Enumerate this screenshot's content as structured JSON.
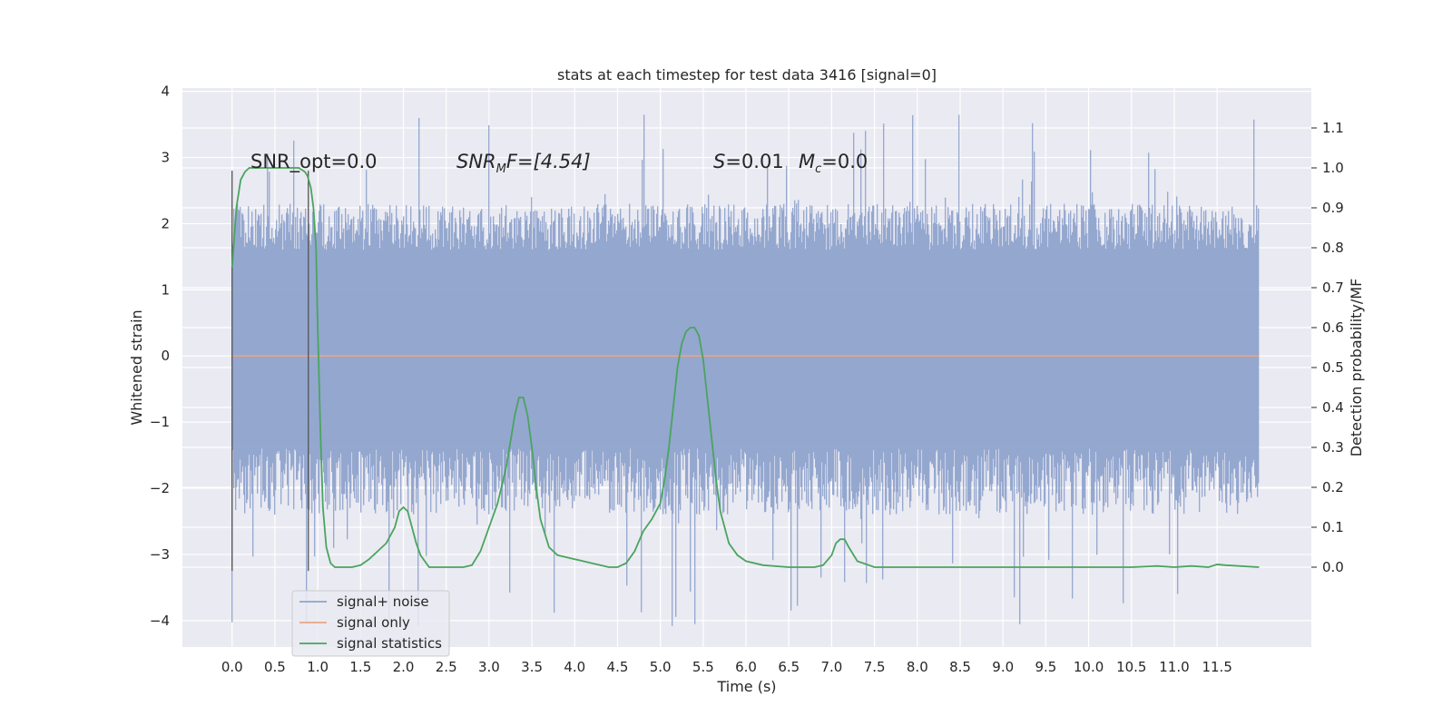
{
  "chart_data": {
    "type": "line",
    "title": "stats at each timestep for test data 3416 [signal=0]",
    "xlabel": "Time (s)",
    "ylabel": "Whitened strain",
    "ylabel_right": "Detection probability/MF",
    "xlim": [
      -0.58,
      12.6
    ],
    "ylim": [
      -4.4,
      4.05
    ],
    "ylim_right": [
      -0.2,
      1.2
    ],
    "x_ticks": [
      "0.0",
      "0.5",
      "1.0",
      "1.5",
      "2.0",
      "2.5",
      "3.0",
      "3.5",
      "4.0",
      "4.5",
      "5.0",
      "5.5",
      "6.0",
      "6.5",
      "7.0",
      "7.5",
      "8.0",
      "8.5",
      "9.0",
      "9.5",
      "10.0",
      "10.5",
      "11.0",
      "11.5"
    ],
    "y_ticks": [
      "4",
      "3",
      "2",
      "1",
      "0",
      "−1",
      "−2",
      "−3",
      "−4"
    ],
    "y_ticks_right": [
      "1.1",
      "1.0",
      "0.9",
      "0.8",
      "0.7",
      "0.6",
      "0.5",
      "0.4",
      "0.3",
      "0.2",
      "0.1",
      "0.0"
    ],
    "grid": true,
    "legend_position": "lower-left",
    "annotations": {
      "snr_opt": "SNR_opt=0.0",
      "snr_mf_base": "SNR",
      "snr_mf_sub": "M",
      "snr_mf_rest": "F=[4.54]",
      "s_label": "S",
      "s_value": "=0.01",
      "mc_label": "M",
      "mc_sub": "c",
      "mc_value": "=0.0"
    },
    "vertical_markers": [
      0.0,
      0.89
    ],
    "noise_summary": {
      "x_start": 0.0,
      "x_end": 11.99,
      "band_hi": 1.6,
      "band_lo": -1.4,
      "peak_hi_typical": 2.3,
      "peak_lo_typical": -2.4,
      "peak_max": 3.65,
      "peak_min": -4.1
    },
    "series": [
      {
        "name": "signal+ noise",
        "color": "#8fa3cc",
        "axis": "left",
        "note": "dense noise trace spanning 0 to 12 s"
      },
      {
        "name": "signal only",
        "color": "#e7a585",
        "axis": "left",
        "x": [
          0.0,
          11.99
        ],
        "y": [
          0.0,
          0.0
        ]
      },
      {
        "name": "signal statistics",
        "color": "#4aa45e",
        "axis": "right",
        "x": [
          0.0,
          0.05,
          0.1,
          0.15,
          0.2,
          0.3,
          0.5,
          0.7,
          0.78,
          0.85,
          0.88,
          0.92,
          0.95,
          0.98,
          1.0,
          1.03,
          1.06,
          1.1,
          1.15,
          1.2,
          1.3,
          1.4,
          1.5,
          1.6,
          1.7,
          1.8,
          1.9,
          1.95,
          2.0,
          2.05,
          2.1,
          2.15,
          2.2,
          2.3,
          2.4,
          2.5,
          2.6,
          2.7,
          2.8,
          2.9,
          3.0,
          3.1,
          3.2,
          3.3,
          3.35,
          3.4,
          3.45,
          3.5,
          3.55,
          3.6,
          3.7,
          3.8,
          3.9,
          4.0,
          4.2,
          4.4,
          4.5,
          4.6,
          4.7,
          4.8,
          4.9,
          5.0,
          5.05,
          5.1,
          5.15,
          5.2,
          5.25,
          5.3,
          5.35,
          5.4,
          5.45,
          5.5,
          5.55,
          5.6,
          5.65,
          5.7,
          5.8,
          5.9,
          6.0,
          6.2,
          6.5,
          6.8,
          6.9,
          7.0,
          7.05,
          7.1,
          7.15,
          7.2,
          7.3,
          7.5,
          8.0,
          8.5,
          9.0,
          9.5,
          10.0,
          10.2,
          10.5,
          10.8,
          11.0,
          11.2,
          11.4,
          11.5,
          11.6,
          11.99
        ],
        "y": [
          0.75,
          0.9,
          0.97,
          0.99,
          1.0,
          1.0,
          1.0,
          1.0,
          1.0,
          0.99,
          0.98,
          0.95,
          0.9,
          0.8,
          0.6,
          0.35,
          0.15,
          0.05,
          0.01,
          0.0,
          0.0,
          0.0,
          0.005,
          0.02,
          0.04,
          0.06,
          0.1,
          0.14,
          0.15,
          0.14,
          0.1,
          0.06,
          0.03,
          0.0,
          0.0,
          0.0,
          0.0,
          0.0,
          0.005,
          0.04,
          0.1,
          0.16,
          0.25,
          0.38,
          0.425,
          0.425,
          0.38,
          0.3,
          0.2,
          0.12,
          0.05,
          0.03,
          0.025,
          0.02,
          0.01,
          0.0,
          0.0,
          0.01,
          0.04,
          0.09,
          0.12,
          0.16,
          0.22,
          0.3,
          0.4,
          0.5,
          0.56,
          0.59,
          0.6,
          0.6,
          0.58,
          0.52,
          0.42,
          0.32,
          0.22,
          0.14,
          0.06,
          0.03,
          0.015,
          0.005,
          0.0,
          0.0,
          0.005,
          0.03,
          0.06,
          0.07,
          0.07,
          0.05,
          0.015,
          0.0,
          0.0,
          0.0,
          0.0,
          0.0,
          0.0,
          0.0,
          0.0,
          0.003,
          0.0,
          0.003,
          0.0,
          0.007,
          0.005,
          0.0
        ]
      }
    ]
  }
}
